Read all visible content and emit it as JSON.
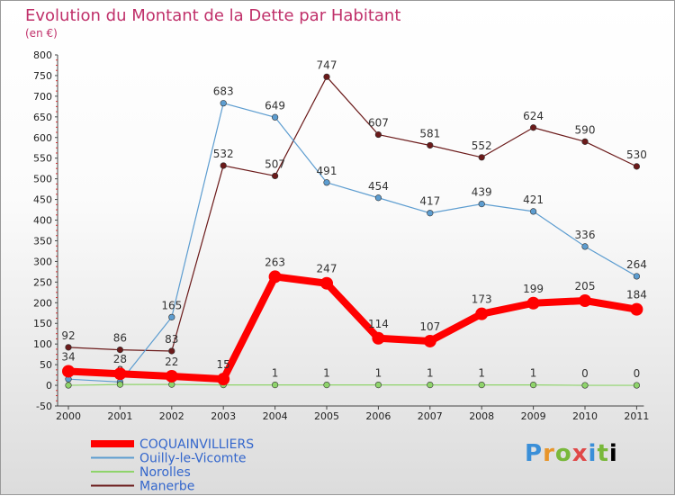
{
  "chart_data": {
    "type": "line",
    "title": "Evolution du Montant de la Dette par Habitant",
    "subtitle": "(en €)",
    "x": [
      "2000",
      "2001",
      "2002",
      "2003",
      "2004",
      "2005",
      "2006",
      "2007",
      "2008",
      "2009",
      "2010",
      "2011"
    ],
    "ylim": [
      -50,
      800
    ],
    "yticks": [
      -50,
      0,
      50,
      100,
      150,
      200,
      250,
      300,
      350,
      400,
      450,
      500,
      550,
      600,
      650,
      700,
      750,
      800
    ],
    "grid": false,
    "legend_position": "bottom-left",
    "series": [
      {
        "name": "Manerbe",
        "color": "#6b1a1a",
        "values": [
          92,
          86,
          83,
          532,
          507,
          747,
          607,
          581,
          552,
          624,
          590,
          530
        ],
        "labels": [
          "92",
          "86",
          "83",
          "532",
          "507",
          "747",
          "607",
          "581",
          "552",
          "624",
          "590",
          "530"
        ]
      },
      {
        "name": "Ouilly-le-Vicomte",
        "color": "#5d9dd0",
        "values": [
          15,
          8,
          165,
          683,
          649,
          491,
          454,
          417,
          439,
          421,
          336,
          264
        ],
        "labels": [
          "",
          "8",
          "165",
          "683",
          "649",
          "491",
          "454",
          "417",
          "439",
          "421",
          "336",
          "264"
        ]
      },
      {
        "name": "Norolles",
        "color": "#8fd46b",
        "values": [
          0,
          2,
          2,
          1,
          1,
          1,
          1,
          1,
          1,
          1,
          0,
          0
        ],
        "labels": [
          "",
          "",
          "",
          "",
          "1",
          "1",
          "1",
          "1",
          "1",
          "1",
          "0",
          "0"
        ]
      },
      {
        "name": "COQUAINVILLIERS",
        "color": "#ff0000",
        "values": [
          34,
          28,
          22,
          15,
          263,
          247,
          114,
          107,
          173,
          199,
          205,
          184
        ],
        "labels": [
          "34",
          "28",
          "22",
          "15",
          "263",
          "247",
          "114",
          "107",
          "173",
          "199",
          "205",
          "184"
        ]
      }
    ]
  },
  "legend": [
    "COQUAINVILLIERS",
    "Ouilly-le-Vicomte",
    "Norolles",
    "Manerbe"
  ],
  "logo": [
    "P",
    "r",
    "o",
    "x",
    "i",
    "t",
    "i"
  ]
}
